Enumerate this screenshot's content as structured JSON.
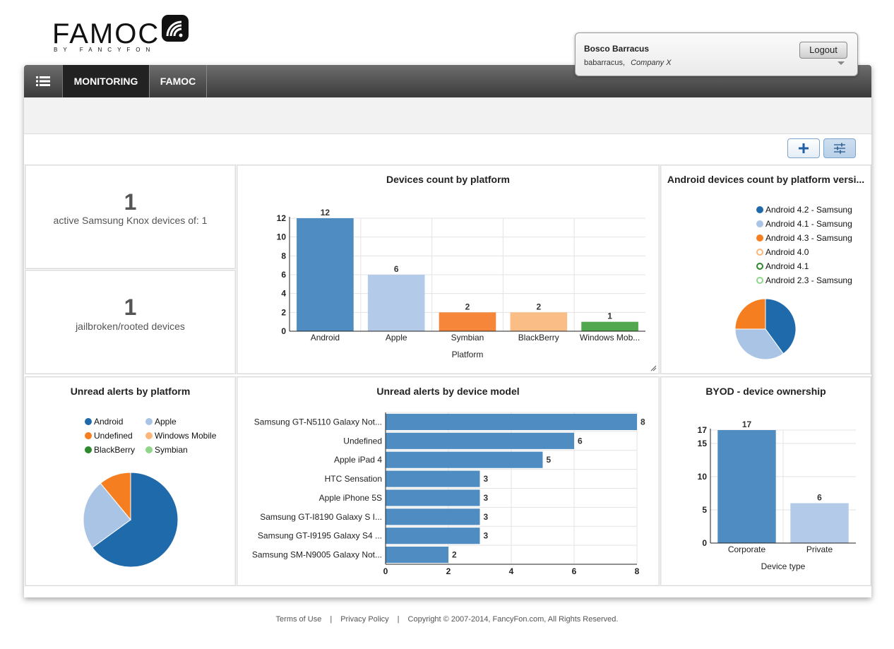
{
  "logo": {
    "text": "FAMOC",
    "sub": "BY FANCYFON"
  },
  "user": {
    "name": "Bosco Barracus",
    "login": "babarracus,",
    "company": "Company X",
    "logout_label": "Logout"
  },
  "nav": {
    "menu_icon": "list-icon",
    "tabs": [
      {
        "label": "MONITORING",
        "active": true
      },
      {
        "label": "FAMOC",
        "active": false
      }
    ]
  },
  "toolbar": {
    "add_icon": "plus-icon",
    "settings_icon": "sliders-icon"
  },
  "stats": [
    {
      "value": "1",
      "label": "active Samsung Knox devices of: 1"
    },
    {
      "value": "1",
      "label": "jailbroken/rooted devices"
    }
  ],
  "widgets": {
    "platform_title": "Devices count by platform",
    "android_title": "Android devices count by platform versi...",
    "alerts_platform_title": "Unread alerts by platform",
    "alerts_model_title": "Unread alerts by device model",
    "byod_title": "BYOD - device ownership"
  },
  "chart_data": [
    {
      "id": "platform",
      "type": "bar",
      "title": "Devices count by platform",
      "xlabel": "Platform",
      "ylabel": "",
      "categories": [
        "Android",
        "Apple",
        "Symbian",
        "BlackBerry",
        "Windows Mob..."
      ],
      "values": [
        12,
        6,
        2,
        2,
        1
      ],
      "colors": [
        "#4e8cc2",
        "#b3cbe8",
        "#f5863a",
        "#fbbd86",
        "#51a84e"
      ],
      "yticks": [
        0,
        2,
        4,
        6,
        8,
        10,
        12
      ],
      "ylim": [
        0,
        12
      ],
      "grid": true
    },
    {
      "id": "android",
      "type": "pie",
      "title": "Android devices count by platform versi...",
      "legend_position": "top-right",
      "labels": [
        "Android 4.2 - Samsung",
        "Android 4.1 - Samsung",
        "Android 4.3 - Samsung",
        "Android 4.0",
        "Android 4.1",
        "Android 2.3 - Samsung"
      ],
      "values": [
        40,
        35,
        25,
        0,
        0,
        0
      ],
      "colors": [
        "#1f6aab",
        "#a9c4e4",
        "#f57f20",
        "#fbb77a",
        "#2c8a2c",
        "#8fd58a"
      ]
    },
    {
      "id": "alerts_platform",
      "type": "pie",
      "title": "Unread alerts by platform",
      "legend_position": "top",
      "labels": [
        "Android",
        "Apple",
        "Undefined",
        "Windows Mobile",
        "BlackBerry",
        "Symbian"
      ],
      "values": [
        65,
        24,
        11,
        0,
        0,
        0
      ],
      "colors": [
        "#1f6aab",
        "#a9c4e4",
        "#f57f20",
        "#fbb77a",
        "#2c8a2c",
        "#8fd58a"
      ]
    },
    {
      "id": "alerts_model",
      "type": "bar",
      "orientation": "horizontal",
      "title": "Unread alerts by device model",
      "categories": [
        "Samsung GT-N5110 Galaxy Not...",
        "Undefined",
        "Apple iPad 4",
        "HTC Sensation",
        "Apple iPhone 5S",
        "Samsung GT-I8190 Galaxy S I...",
        "Samsung GT-I9195 Galaxy S4 ...",
        "Samsung SM-N9005 Galaxy Not..."
      ],
      "values": [
        8,
        6,
        5,
        3,
        3,
        3,
        3,
        2
      ],
      "xticks": [
        0,
        2,
        4,
        6,
        8
      ],
      "xlim": [
        0,
        8
      ],
      "color": "#4e8cc2",
      "grid": true
    },
    {
      "id": "byod",
      "type": "bar",
      "title": "BYOD - device ownership",
      "xlabel": "Device type",
      "categories": [
        "Corporate",
        "Private"
      ],
      "values": [
        17,
        6
      ],
      "colors": [
        "#4e8cc2",
        "#b3cbe8"
      ],
      "yticks": [
        0,
        5,
        10,
        15,
        17
      ],
      "ylim": [
        0,
        17
      ],
      "grid": true
    }
  ],
  "footer": {
    "terms": "Terms of Use",
    "privacy": "Privacy Policy",
    "copyright": "Copyright © 2007-2014, FancyFon.com, All Rights Reserved."
  }
}
